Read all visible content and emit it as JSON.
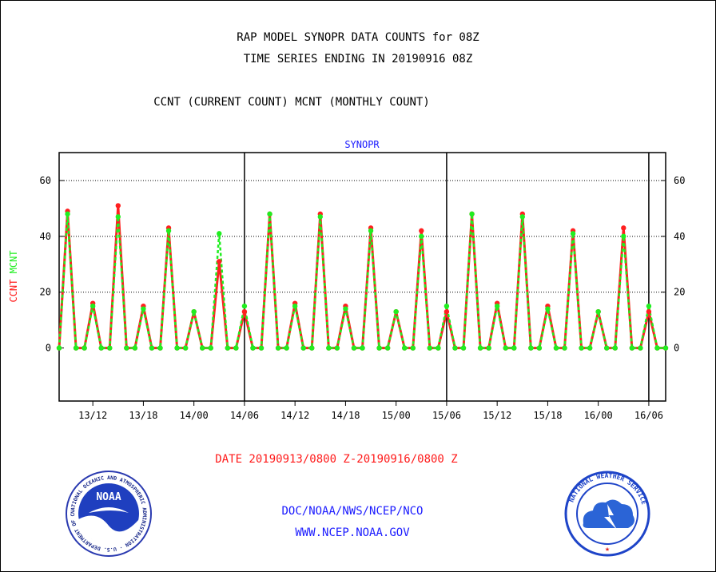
{
  "titles": {
    "line1": "RAP MODEL SYNOPR DATA COUNTS for 08Z",
    "line2": "TIME SERIES ENDING IN 20190916 08Z",
    "line3": "CCNT (CURRENT COUNT) MCNT (MONTHLY COUNT)"
  },
  "date_range": "DATE 20190913/0800 Z-20190916/0800 Z",
  "footer": {
    "org": "DOC/NOAA/NWS/NCEP/NCO",
    "url": "WWW.NCEP.NOAA.GOV"
  },
  "logos": {
    "noaa": {
      "center": "NOAA",
      "ring": "NATIONAL OCEANIC AND ATMOSPHERIC ADMINISTRATION · U.S. DEPARTMENT OF COMMERCE"
    },
    "nws": {
      "ring": "NATIONAL WEATHER SERVICE"
    }
  },
  "colors": {
    "ccnt": "#ff2020",
    "mcnt": "#20ee20",
    "text_blue": "#1a1aff",
    "text_red": "#ff1a1a",
    "grid": "#000000"
  },
  "chart_data": {
    "type": "line",
    "title": "SYNOPR",
    "ylabel_series": [
      "CCNT",
      "MCNT"
    ],
    "ylim": [
      -19,
      70
    ],
    "yticks": [
      0,
      20,
      40,
      60
    ],
    "xlim": [
      0,
      72
    ],
    "x_unit": "hours from 20190913/0800 Z",
    "xtick_labels": [
      {
        "x": 4,
        "label": "13/12"
      },
      {
        "x": 10,
        "label": "13/18"
      },
      {
        "x": 16,
        "label": "14/00"
      },
      {
        "x": 22,
        "label": "14/06"
      },
      {
        "x": 28,
        "label": "14/12"
      },
      {
        "x": 34,
        "label": "14/18"
      },
      {
        "x": 40,
        "label": "15/00"
      },
      {
        "x": 46,
        "label": "15/06"
      },
      {
        "x": 52,
        "label": "15/12"
      },
      {
        "x": 58,
        "label": "15/18"
      },
      {
        "x": 64,
        "label": "16/00"
      },
      {
        "x": 70,
        "label": "16/06"
      }
    ],
    "day_boundaries": [
      22,
      46,
      70
    ],
    "grid": "horizontal dotted at 20, 40, 60",
    "series": [
      {
        "name": "CCNT",
        "values": [
          0,
          49,
          0,
          0,
          16,
          0,
          0,
          51,
          0,
          0,
          15,
          0,
          0,
          43,
          0,
          0,
          13,
          0,
          0,
          31,
          0,
          0,
          13,
          0,
          0,
          48,
          0,
          0,
          16,
          0,
          0,
          48,
          0,
          0,
          15,
          0,
          0,
          43,
          0,
          0,
          13,
          0,
          0,
          42,
          0,
          0,
          13,
          0,
          0,
          48,
          0,
          0,
          16,
          0,
          0,
          48,
          0,
          0,
          15,
          0,
          0,
          42,
          0,
          0,
          13,
          0,
          0,
          43,
          0,
          0,
          13,
          0,
          0
        ]
      },
      {
        "name": "MCNT",
        "values": [
          0,
          48,
          0,
          0,
          15,
          0,
          0,
          47,
          0,
          0,
          14,
          0,
          0,
          42,
          0,
          0,
          13,
          0,
          0,
          41,
          0,
          0,
          15,
          0,
          0,
          48,
          0,
          0,
          15,
          0,
          0,
          47,
          0,
          0,
          14,
          0,
          0,
          42,
          0,
          0,
          13,
          0,
          0,
          40,
          0,
          0,
          15,
          0,
          0,
          48,
          0,
          0,
          15,
          0,
          0,
          47,
          0,
          0,
          14,
          0,
          0,
          41,
          0,
          0,
          13,
          0,
          0,
          40,
          0,
          0,
          15,
          0,
          0
        ]
      }
    ]
  }
}
